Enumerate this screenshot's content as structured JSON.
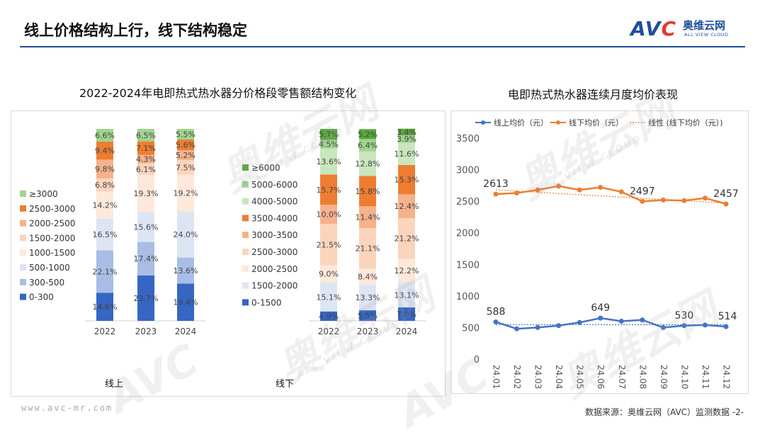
{
  "header": {
    "title": "线上价格结构上行，线下结构稳定",
    "logo_mark_a": "AV",
    "logo_mark_b": "C",
    "logo_cn": "奥维云网",
    "logo_en": "ALL VIEW CLOUD"
  },
  "footer": {
    "url": "www.avc-mr.com",
    "source": "数据来源：奥维云网（AVC）监测数据 -2-"
  },
  "watermark": {
    "big": "奥维云网",
    "small": "ALL VIEW CLOUD",
    "mark": "AVC"
  },
  "colors": {
    "online_line": "#4472c4",
    "offline_line": "#ed7d31",
    "trend_line": "#ed7d31"
  },
  "chart_data": [
    {
      "type": "bar",
      "stacked": true,
      "title": "2022-2024年电即热式热水器分价格段零售额结构变化",
      "group_label": "线上",
      "categories": [
        "2022",
        "2023",
        "2024"
      ],
      "series": [
        {
          "name": "0-300",
          "color": "#3566c4",
          "values": [
            14.6,
            23.7,
            19.4
          ],
          "labels": [
            "14.6%",
            "23.7%",
            "19.4%"
          ]
        },
        {
          "name": "300-500",
          "color": "#a9bde5",
          "values": [
            22.1,
            17.4,
            13.6
          ],
          "labels": [
            "22.1%",
            "17.4%",
            "13.6%"
          ]
        },
        {
          "name": "500-1000",
          "color": "#dde5f4",
          "values": [
            16.5,
            15.6,
            24.0
          ],
          "labels": [
            "16.5%",
            "15.6%",
            "24.0%"
          ]
        },
        {
          "name": "1000-1500",
          "color": "#fde8da",
          "values": [
            14.2,
            19.3,
            19.2
          ],
          "labels": [
            "14.2%",
            "19.3%",
            "19.2%"
          ]
        },
        {
          "name": "1500-2000",
          "color": "#fad4bd",
          "values": [
            6.8,
            6.1,
            7.5
          ],
          "labels": [
            "6.8%",
            "6.1%",
            "7.5%"
          ]
        },
        {
          "name": "2000-2500",
          "color": "#f5b28c",
          "values": [
            9.8,
            4.3,
            5.2
          ],
          "labels": [
            "9.8%",
            "4.3%",
            "5.2%"
          ]
        },
        {
          "name": "2500-3000",
          "color": "#ee7d31",
          "values": [
            9.4,
            7.1,
            5.6
          ],
          "labels": [
            "9.4%",
            "7.1%",
            "5.6%"
          ]
        },
        {
          "name": "≥3000",
          "color": "#9fd58e",
          "values": [
            6.6,
            6.5,
            5.5
          ],
          "labels": [
            "6.6%",
            "6.5%",
            "5.5%"
          ]
        }
      ],
      "legend": [
        "≥3000",
        "2500-3000",
        "2000-2500",
        "1500-2000",
        "1000-1500",
        "500-1000",
        "300-500",
        "0-300"
      ],
      "ylim": [
        0,
        100
      ]
    },
    {
      "type": "bar",
      "stacked": true,
      "group_label": "线下",
      "categories": [
        "2022",
        "2023",
        "2024"
      ],
      "series": [
        {
          "name": "0-1500",
          "color": "#3566c4",
          "values": [
            4.9,
            5.5,
            7.0
          ],
          "labels": [
            "4.9%",
            "5.5%",
            "7.0%"
          ]
        },
        {
          "name": "1500-2000",
          "color": "#dde5f4",
          "values": [
            15.1,
            13.3,
            13.1
          ],
          "labels": [
            "15.1%",
            "13.3%",
            "13.1%"
          ]
        },
        {
          "name": "2000-2500",
          "color": "#fde8da",
          "values": [
            9.0,
            8.4,
            12.2
          ],
          "labels": [
            "9.0%",
            "8.4%",
            "12.2%"
          ]
        },
        {
          "name": "2500-3000",
          "color": "#fad4bd",
          "values": [
            21.5,
            21.1,
            21.2
          ],
          "labels": [
            "21.5%",
            "21.1%",
            "21.2%"
          ]
        },
        {
          "name": "3000-3500",
          "color": "#f5b28c",
          "values": [
            10.0,
            11.4,
            12.4
          ],
          "labels": [
            "10.0%",
            "11.4%",
            "12.4%"
          ]
        },
        {
          "name": "3500-4000",
          "color": "#ee7d31",
          "values": [
            15.7,
            15.8,
            15.3
          ],
          "labels": [
            "15.7%",
            "15.8%",
            "15.3%"
          ]
        },
        {
          "name": "4000-5000",
          "color": "#c9e6bd",
          "values": [
            13.6,
            12.8,
            11.6
          ],
          "labels": [
            "13.6%",
            "12.8%",
            "11.6%"
          ]
        },
        {
          "name": "5000-6000",
          "color": "#9fd58e",
          "values": [
            4.5,
            6.4,
            3.9
          ],
          "labels": [
            "4.5%",
            "6.4%",
            "3.9%"
          ]
        },
        {
          "name": "≥6000",
          "color": "#5aa83c",
          "values": [
            5.7,
            5.2,
            3.4
          ],
          "labels": [
            "5.7%",
            "5.2%",
            "3.4%"
          ]
        }
      ],
      "legend": [
        "≥6000",
        "5000-6000",
        "4000-5000",
        "3500-4000",
        "3000-3500",
        "2500-3000",
        "2000-2500",
        "1500-2000",
        "0-1500"
      ],
      "ylim": [
        0,
        100
      ]
    },
    {
      "type": "line",
      "title": "电即热式热水器连续月度均价表现",
      "x": [
        "24.01",
        "24.02",
        "24.03",
        "24.04",
        "24.05",
        "24.06",
        "24.07",
        "24.08",
        "24.09",
        "24.10",
        "24.11",
        "24.12"
      ],
      "series": [
        {
          "name": "线上均价（元）",
          "values": [
            588,
            480,
            500,
            530,
            580,
            649,
            600,
            620,
            500,
            530,
            540,
            514
          ]
        },
        {
          "name": "线下均价（元）",
          "values": [
            2613,
            2630,
            2680,
            2740,
            2680,
            2720,
            2650,
            2497,
            2520,
            2510,
            2550,
            2457
          ]
        }
      ],
      "trendline": {
        "name": "线性 (线下均价（元）)",
        "start": 2680,
        "end": 2470
      },
      "online_trend": 545,
      "point_labels": {
        "online": [
          {
            "index": 0,
            "text": "588"
          },
          {
            "index": 5,
            "text": "649"
          },
          {
            "index": 9,
            "text": "530"
          },
          {
            "index": 11,
            "text": "514"
          }
        ],
        "offline": [
          {
            "index": 0,
            "text": "2613"
          },
          {
            "index": 7,
            "text": "2497"
          },
          {
            "index": 11,
            "text": "2457"
          }
        ]
      },
      "ylim": [
        0,
        3500
      ],
      "yticks": [
        "0",
        "500",
        "1000",
        "1500",
        "2000",
        "2500",
        "3000",
        "3500"
      ]
    }
  ]
}
